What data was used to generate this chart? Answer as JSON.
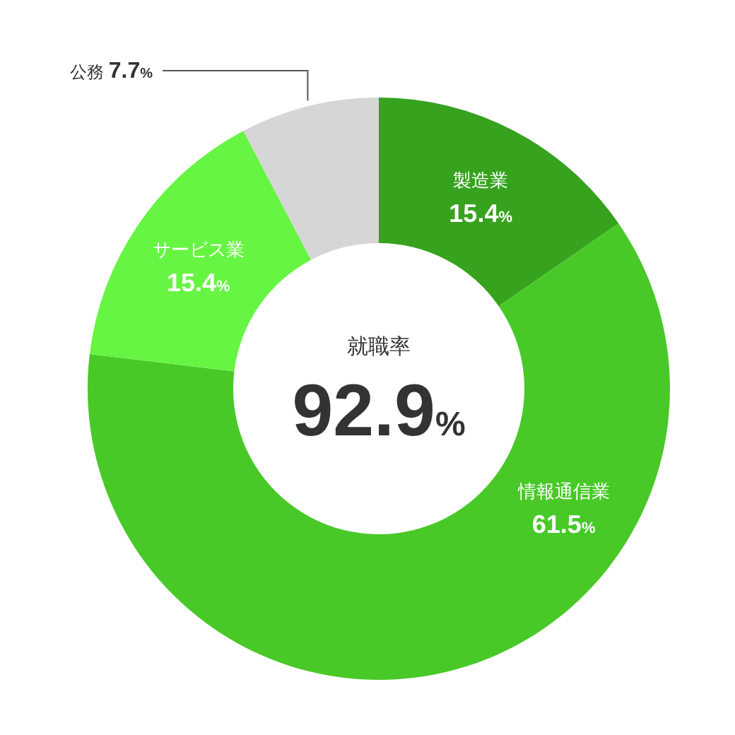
{
  "chart_data": {
    "type": "donut",
    "title": "就職率",
    "annotations": [
      "92.9%"
    ],
    "categories": [
      "製造業",
      "情報通信業",
      "サービス業",
      "公務"
    ],
    "values": [
      15.4,
      61.5,
      15.4,
      7.7
    ],
    "value_labels": [
      "15.4%",
      "61.5%",
      "15.4%",
      "7.7%"
    ],
    "colors": [
      "#36a21e",
      "#48c928",
      "#66f542",
      "#d6d6d6"
    ],
    "legend": false
  }
}
